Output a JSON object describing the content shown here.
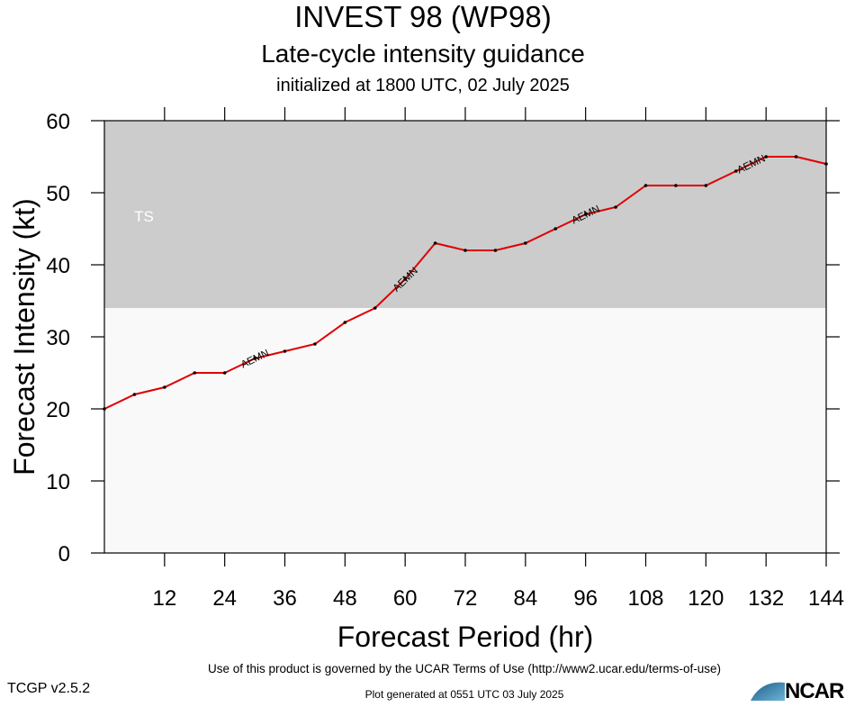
{
  "header": {
    "title": "INVEST 98 (WP98)",
    "subtitle": "Late-cycle intensity guidance",
    "initialized": "initialized at 1800 UTC, 02 July 2025"
  },
  "footer": {
    "terms": "Use of this product is governed by the UCAR Terms of Use (http://www2.ucar.edu/terms-of-use)",
    "version": "TCGP v2.5.2",
    "generated": "Plot generated at 0551 UTC   03 July 2025",
    "logo_text": "NCAR"
  },
  "chart_data": {
    "type": "line",
    "xlabel": "Forecast Period (hr)",
    "ylabel": "Forecast Intensity (kt)",
    "xlim": [
      0,
      144
    ],
    "ylim": [
      0,
      60
    ],
    "xticks": [
      12,
      24,
      36,
      48,
      60,
      72,
      84,
      96,
      108,
      120,
      132,
      144
    ],
    "yticks": [
      0,
      10,
      20,
      30,
      40,
      50,
      60
    ],
    "grid": false,
    "bands": [
      {
        "label": "TS",
        "from": 34,
        "to": 60,
        "color": "#cccccc"
      }
    ],
    "below_band_color": "#f9f9f9",
    "series": [
      {
        "name": "AEMN",
        "color": "#e00000",
        "x": [
          0,
          6,
          12,
          18,
          24,
          30,
          36,
          42,
          48,
          54,
          60,
          66,
          72,
          78,
          84,
          90,
          96,
          102,
          108,
          114,
          120,
          126,
          132,
          138,
          144
        ],
        "y": [
          20,
          22,
          23,
          25,
          25,
          27,
          28,
          29,
          32,
          34,
          38,
          43,
          42,
          42,
          43,
          45,
          47,
          48,
          51,
          51,
          51,
          53,
          55,
          55,
          54
        ],
        "label_at_x": [
          30,
          60,
          96,
          129
        ]
      }
    ]
  }
}
